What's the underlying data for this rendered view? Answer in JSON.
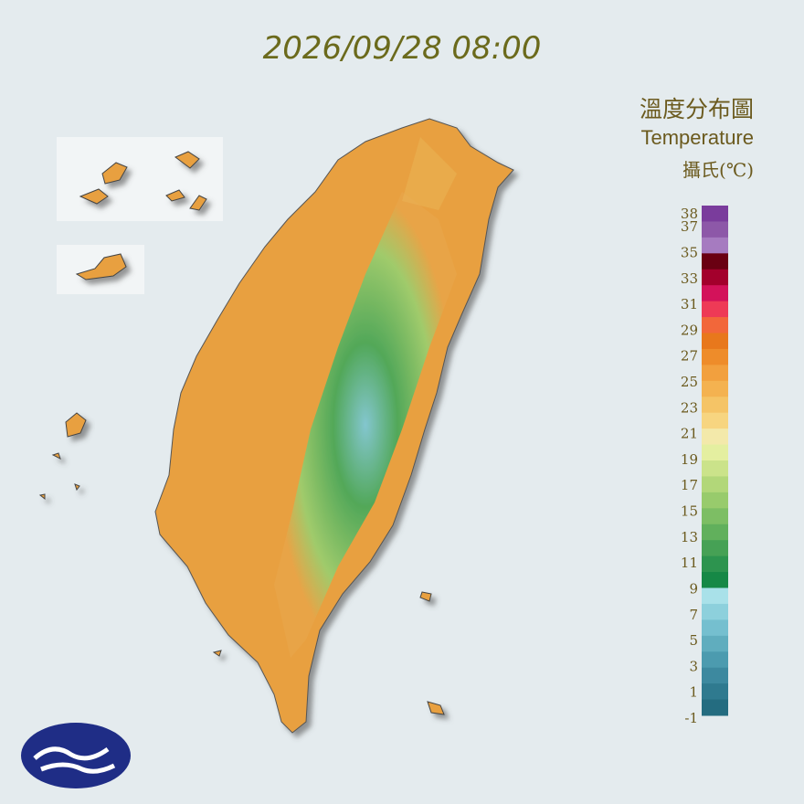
{
  "timestamp": "2026/09/28 08:00",
  "legend": {
    "title_zh": "溫度分布圖",
    "title_en": "Temperature",
    "unit": "攝氏(℃)",
    "ticks": [
      38,
      37,
      35,
      33,
      31,
      29,
      27,
      25,
      23,
      21,
      19,
      17,
      15,
      13,
      11,
      9,
      7,
      5,
      3,
      1,
      -1
    ],
    "colors": [
      "#7a3c9c",
      "#8d58a8",
      "#a67bc0",
      "#6a0012",
      "#a3002c",
      "#d3125a",
      "#ee3a56",
      "#f2673a",
      "#e8781c",
      "#ee8c2a",
      "#f2a03e",
      "#f4b250",
      "#f5c466",
      "#f7d580",
      "#f3e9aa",
      "#e4efa0",
      "#cbe38a",
      "#b2d779",
      "#98cb6c",
      "#7dbe64",
      "#61b05c",
      "#46a155",
      "#2d944f",
      "#168846",
      "#a9e1e9",
      "#8dd0dc",
      "#75bfcf",
      "#60adbe",
      "#4c9baf",
      "#3d899f",
      "#2f7a8f",
      "#246c80"
    ]
  }
}
